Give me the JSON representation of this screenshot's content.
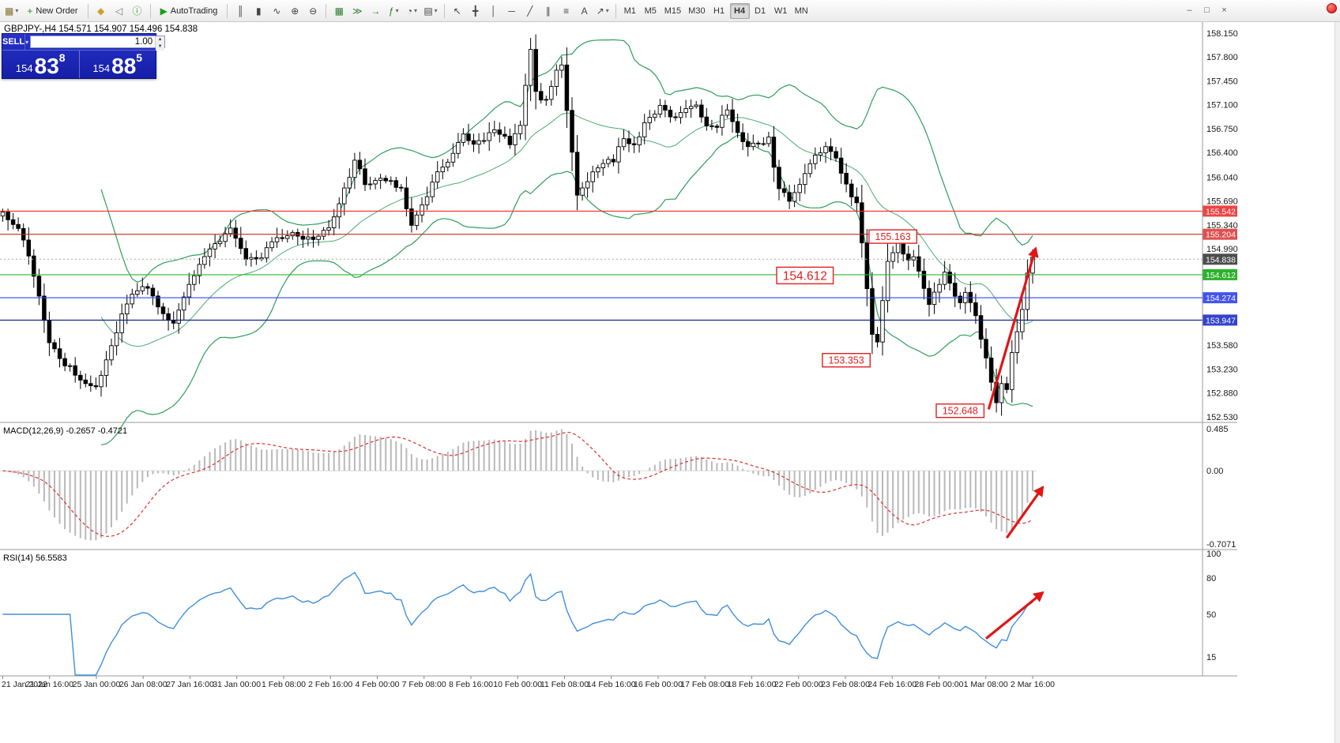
{
  "window_controls": {
    "minimize": "–",
    "restore": "□",
    "close": "×"
  },
  "toolbar": {
    "caret_glyph": "▾",
    "groups": [
      {
        "items": [
          {
            "name": "new-chart-button",
            "glyph": "▦",
            "color": "#8a6d2f",
            "caret": true
          },
          {
            "name": "new-order-button",
            "glyph": "+",
            "color": "#0f9b0f",
            "label": "New Order"
          }
        ]
      },
      {
        "items": [
          {
            "name": "metaeditor-button",
            "glyph": "◆",
            "color": "#c9a227"
          },
          {
            "name": "sound-alerts-button",
            "glyph": "◁",
            "color": "#777777"
          },
          {
            "name": "community-button",
            "glyph": "ⓘ",
            "color": "#2a9d2a"
          }
        ]
      },
      {
        "items": [
          {
            "name": "autotrading-button",
            "glyph": "▶",
            "color": "#18a018",
            "label": "AutoTrading"
          }
        ]
      },
      {
        "items": [
          {
            "name": "bar-chart-type-button",
            "glyph": "║"
          },
          {
            "name": "candlestick-chart-type-button",
            "glyph": "▮"
          },
          {
            "name": "line-chart-type-button",
            "glyph": "∿"
          },
          {
            "name": "zoom-in-button",
            "glyph": "⊕"
          },
          {
            "name": "zoom-out-button",
            "glyph": "⊖"
          }
        ]
      },
      {
        "items": [
          {
            "name": "tile-windows-button",
            "glyph": "▦",
            "color": "#2a7d2a"
          },
          {
            "name": "auto-scroll-button",
            "glyph": "≫",
            "color": "#2a7d2a"
          },
          {
            "name": "chart-shift-button",
            "glyph": "→",
            "color": "#2a7d2a"
          },
          {
            "name": "indicators-button",
            "glyph": "ƒ",
            "color": "#2a7d2a",
            "caret": true
          },
          {
            "name": "periods-button",
            "glyph": "◔",
            "caret": true
          },
          {
            "name": "templates-button",
            "glyph": "▤",
            "caret": true
          }
        ]
      },
      {
        "items": [
          {
            "name": "cursor-tool-button",
            "glyph": "↖"
          },
          {
            "name": "crosshair-tool-button",
            "glyph": "╋"
          },
          {
            "name": "vertical-line-tool-button",
            "glyph": "│"
          },
          {
            "name": "horizontal-line-tool-button",
            "glyph": "─"
          },
          {
            "name": "trendline-tool-button",
            "glyph": "╱"
          },
          {
            "name": "channel-tool-button",
            "glyph": "∥"
          },
          {
            "name": "fibonacci-tool-button",
            "glyph": "≡"
          },
          {
            "name": "text-tool-button",
            "glyph": "A"
          },
          {
            "name": "arrows-tool-button",
            "glyph": "↗",
            "caret": true
          }
        ]
      }
    ],
    "timeframes": [
      "M1",
      "M5",
      "M15",
      "M30",
      "H1",
      "H4",
      "D1",
      "W1",
      "MN"
    ],
    "active_timeframe": "H4"
  },
  "chart": {
    "title": "GBPJPY-,H4 154.571 154.907 154.496 154.838"
  },
  "one_click": {
    "sell_label": "SELL",
    "buy_label": "BUY",
    "volume": "1.00",
    "caret": "▾",
    "spin_up": "▲",
    "spin_down": "▼",
    "sell_price": {
      "small": "154",
      "big": "83",
      "sup": "8"
    },
    "buy_price": {
      "small": "154",
      "big": "88",
      "sup": "5"
    }
  },
  "chart_data": [
    {
      "type": "candlestick",
      "symbol": "GBPJPY-",
      "timeframe": "H4",
      "ohlc": {
        "open": "154.571",
        "high": "154.907",
        "low": "154.496",
        "close": "154.838"
      },
      "y_axis": {
        "min": 152.46,
        "max": 158.31,
        "ticks": [
          "158.150",
          "157.800",
          "157.450",
          "157.100",
          "156.750",
          "156.400",
          "156.040",
          "155.690",
          "155.340",
          "154.990",
          "153.580",
          "153.230",
          "152.880",
          "152.530"
        ]
      },
      "x_labels": [
        "21 Jan 2022",
        "21 Jan 16:00",
        "25 Jan 00:00",
        "26 Jan 08:00",
        "27 Jan 16:00",
        "31 Jan 00:00",
        "1 Feb 08:00",
        "2 Feb 16:00",
        "4 Feb 00:00",
        "7 Feb 08:00",
        "8 Feb 16:00",
        "10 Feb 00:00",
        "11 Feb 08:00",
        "14 Feb 16:00",
        "16 Feb 00:00",
        "17 Feb 08:00",
        "18 Feb 16:00",
        "22 Feb 00:00",
        "23 Feb 08:00",
        "24 Feb 16:00",
        "28 Feb 00:00",
        "1 Mar 08:00",
        "2 Mar 16:00"
      ],
      "candles_count": 200,
      "bull_color": "#ffffff",
      "bear_color": "#000000",
      "outline_color": "#000000",
      "bollinger": {
        "period": 20,
        "deviation": 2,
        "color": "#2e9e5b"
      },
      "price_lines": [
        {
          "label": "155.542",
          "price": 155.542,
          "line_color": "#ff2a2a",
          "box_color": "#ee4444"
        },
        {
          "label": "155.204",
          "price": 155.204,
          "line_color": "#c62828",
          "box_color": "#e05050"
        },
        {
          "label": "154.612",
          "price": 154.612,
          "line_color": "#2eb82e",
          "box_color": "#2db22d"
        },
        {
          "label": "154.274",
          "price": 154.274,
          "line_color": "#3344ff",
          "box_color": "#4455ee"
        },
        {
          "label": "153.947",
          "price": 153.947,
          "line_color": "#001889",
          "box_color": "#3344cc"
        }
      ],
      "current_price": {
        "label": "154.838",
        "price": 154.838,
        "box_color": "#4d4d4d"
      },
      "price_path_keypoints": [
        [
          0,
          155.5
        ],
        [
          3,
          155.3
        ],
        [
          5,
          154.9
        ],
        [
          9,
          153.63
        ],
        [
          12,
          153.3
        ],
        [
          14,
          153.17
        ],
        [
          18,
          152.93
        ],
        [
          21,
          153.6
        ],
        [
          23,
          154.0
        ],
        [
          25,
          154.35
        ],
        [
          28,
          154.45
        ],
        [
          31,
          154.05
        ],
        [
          33,
          153.87
        ],
        [
          35,
          154.3
        ],
        [
          38,
          154.8
        ],
        [
          41,
          155.05
        ],
        [
          44,
          155.3
        ],
        [
          47,
          154.8
        ],
        [
          50,
          154.9
        ],
        [
          53,
          155.15
        ],
        [
          56,
          155.2
        ],
        [
          60,
          155.15
        ],
        [
          63,
          155.3
        ],
        [
          66,
          155.85
        ],
        [
          68,
          156.3
        ],
        [
          70,
          155.95
        ],
        [
          73,
          156.0
        ],
        [
          75,
          155.95
        ],
        [
          77,
          155.9
        ],
        [
          79,
          155.3
        ],
        [
          82,
          155.75
        ],
        [
          84,
          156.1
        ],
        [
          86,
          156.3
        ],
        [
          89,
          156.65
        ],
        [
          91,
          156.5
        ],
        [
          93,
          156.6
        ],
        [
          95,
          156.75
        ],
        [
          98,
          156.55
        ],
        [
          100,
          156.8
        ],
        [
          102,
          157.95
        ],
        [
          103,
          157.25
        ],
        [
          105,
          157.15
        ],
        [
          107,
          157.6
        ],
        [
          108,
          157.65
        ],
        [
          111,
          155.75
        ],
        [
          113,
          155.95
        ],
        [
          115,
          156.2
        ],
        [
          118,
          156.3
        ],
        [
          120,
          156.6
        ],
        [
          122,
          156.5
        ],
        [
          124,
          156.8
        ],
        [
          127,
          157.1
        ],
        [
          129,
          156.9
        ],
        [
          131,
          157.0
        ],
        [
          134,
          157.1
        ],
        [
          136,
          156.8
        ],
        [
          138,
          156.8
        ],
        [
          140,
          157.05
        ],
        [
          143,
          156.55
        ],
        [
          145,
          156.5
        ],
        [
          148,
          156.6
        ],
        [
          150,
          155.85
        ],
        [
          152,
          155.7
        ],
        [
          154,
          155.95
        ],
        [
          157,
          156.4
        ],
        [
          159,
          156.45
        ],
        [
          161,
          156.3
        ],
        [
          163,
          155.9
        ],
        [
          165,
          155.65
        ],
        [
          166,
          155.05
        ],
        [
          168,
          153.75
        ],
        [
          169,
          153.64
        ],
        [
          171,
          154.8
        ],
        [
          173,
          155.05
        ],
        [
          175,
          154.8
        ],
        [
          176,
          154.9
        ],
        [
          177,
          154.66
        ],
        [
          179,
          154.2
        ],
        [
          181,
          154.45
        ],
        [
          182,
          154.66
        ],
        [
          184,
          154.3
        ],
        [
          185,
          154.2
        ],
        [
          186,
          154.37
        ],
        [
          188,
          153.97
        ],
        [
          190,
          153.4
        ],
        [
          191,
          153.05
        ],
        [
          192,
          152.77
        ],
        [
          193,
          153.05
        ],
        [
          194,
          152.95
        ],
        [
          195,
          153.5
        ],
        [
          197,
          154.08
        ],
        [
          198,
          154.66
        ],
        [
          199,
          154.84
        ]
      ],
      "annotations": {
        "callouts": [
          {
            "label": "155.163",
            "idx": 172,
            "price": 155.17,
            "size": "small"
          },
          {
            "label": "154.612",
            "idx": 155,
            "price": 154.6,
            "size": "large"
          },
          {
            "label": "153.353",
            "idx": 163,
            "price": 153.36,
            "size": "small"
          },
          {
            "label": "152.648",
            "idx": 185,
            "price": 152.62,
            "size": "small"
          }
        ],
        "arrows": [
          {
            "panel": "main",
            "from": [
              190.5,
              152.64
            ],
            "to": [
              199.6,
              155.0
            ]
          },
          {
            "panel": "macd",
            "from": [
              194,
              -0.62
            ],
            "to": [
              201,
              -0.15
            ]
          },
          {
            "panel": "rsi",
            "from": [
              190,
              30
            ],
            "to": [
              201,
              68
            ]
          }
        ]
      }
    },
    {
      "type": "macd",
      "label": "MACD(12,26,9)",
      "main_value": "-0.2657",
      "signal_value": "-0.4721",
      "params": {
        "fast": 12,
        "slow": 26,
        "signal": 9
      },
      "scale": {
        "top": "0.485",
        "zero": "0.00",
        "bottom": "-0.7071"
      },
      "histogram_color": "#b9b9b9",
      "signal_color": "#e03030"
    },
    {
      "type": "rsi",
      "label": "RSI(14)",
      "value": "56.5583",
      "period": 14,
      "scale_ticks": [
        "100",
        "80",
        "50",
        "15"
      ],
      "line_color": "#3f8fde"
    }
  ]
}
